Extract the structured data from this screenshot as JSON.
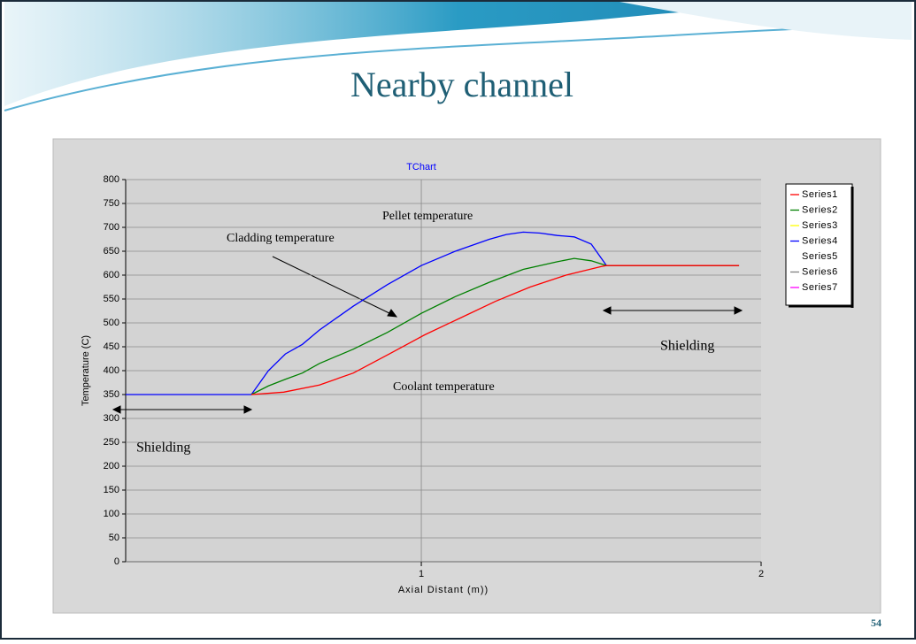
{
  "slide": {
    "title": "Nearby channel",
    "page_number": "54"
  },
  "chart_data": {
    "type": "line",
    "title": "TChart",
    "x_label": "Axial Distant (m))",
    "y_label": "Temperature (C)",
    "xlim": [
      0.13,
      2
    ],
    "ylim": [
      0,
      800
    ],
    "xticks": [
      1,
      2
    ],
    "yticks": [
      0,
      50,
      100,
      150,
      200,
      250,
      300,
      350,
      400,
      450,
      500,
      550,
      600,
      650,
      700,
      750,
      800
    ],
    "grid": true,
    "legend": "right",
    "annotations": [
      "Pellet temperature",
      "Cladding temperature",
      "Coolant temperature",
      "Shielding",
      "Shielding"
    ],
    "series": [
      {
        "name": "Series1",
        "color": "#ff0000",
        "x": [
          0.5,
          0.595,
          0.7,
          0.8,
          0.906,
          1.01,
          1.114,
          1.218,
          1.32,
          1.426,
          1.53,
          1.545,
          1.935
        ],
        "values": [
          350,
          355,
          370,
          395,
          435,
          475,
          510,
          545,
          575,
          600,
          618,
          620,
          620
        ]
      },
      {
        "name": "Series2",
        "color": "#008000",
        "x": [
          0.5,
          0.55,
          0.6,
          0.65,
          0.7,
          0.8,
          0.9,
          1.0,
          1.1,
          1.2,
          1.3,
          1.4,
          1.45,
          1.5,
          1.545,
          1.935
        ],
        "values": [
          350,
          368,
          382,
          395,
          415,
          445,
          480,
          520,
          555,
          585,
          612,
          628,
          635,
          630,
          620,
          620
        ]
      },
      {
        "name": "Series3",
        "color": "#ffff00",
        "x": [],
        "values": []
      },
      {
        "name": "Series4",
        "color": "#0000ff",
        "x": [
          0.13,
          0.5,
          0.55,
          0.6,
          0.65,
          0.7,
          0.8,
          0.9,
          1.0,
          1.1,
          1.2,
          1.25,
          1.3,
          1.35,
          1.4,
          1.45,
          1.5,
          1.545,
          1.935
        ],
        "values": [
          350,
          350,
          400,
          435,
          455,
          485,
          535,
          580,
          620,
          650,
          675,
          685,
          690,
          688,
          683,
          680,
          665,
          620,
          620
        ]
      },
      {
        "name": "Series5",
        "color": "#ffffff",
        "x": [],
        "values": []
      },
      {
        "name": "Series6",
        "color": "#808080",
        "x": [],
        "values": []
      },
      {
        "name": "Series7",
        "color": "#ff00ff",
        "x": [],
        "values": []
      }
    ]
  }
}
